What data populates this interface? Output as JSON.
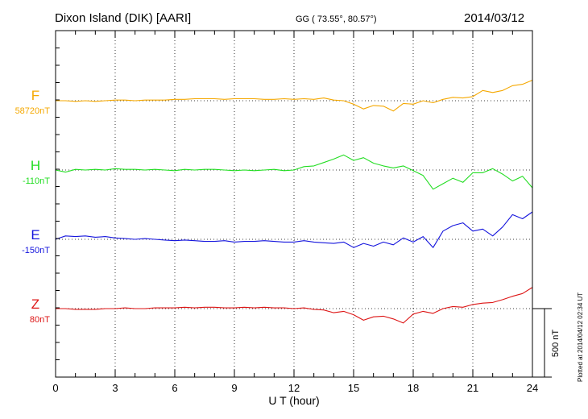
{
  "header": {
    "station": "Dixon Island (DIK)  [AARI]",
    "coords": "GG ( 73.55°,  80.57°)",
    "date": "2014/03/12"
  },
  "footer": {
    "plotted": "Plotted at 2014/04/12 02:34 UT"
  },
  "chart_data": {
    "type": "line",
    "xlabel": "U T (hour)",
    "xlim": [
      0,
      24
    ],
    "xticks": [
      0,
      3,
      6,
      9,
      12,
      15,
      18,
      21,
      24
    ],
    "scale_bar": "500 nT",
    "grid": true,
    "series": [
      {
        "name": "F",
        "baseline": "58720nT",
        "color": "#f5a800",
        "x": [
          0,
          0.5,
          1,
          1.5,
          2,
          2.5,
          3,
          3.5,
          4,
          4.5,
          5,
          5.5,
          6,
          6.5,
          7,
          7.5,
          8,
          8.5,
          9,
          9.5,
          10,
          10.5,
          11,
          11.5,
          12,
          12.5,
          13,
          13.5,
          14,
          14.5,
          15,
          15.5,
          16,
          16.5,
          17,
          17.5,
          18,
          18.5,
          19,
          19.5,
          20,
          20.5,
          21,
          21.5,
          22,
          22.5,
          23,
          23.5,
          24
        ],
        "y": [
          0,
          0,
          -5,
          0,
          -5,
          0,
          5,
          5,
          0,
          5,
          5,
          5,
          10,
          10,
          15,
          15,
          15,
          10,
          15,
          15,
          15,
          10,
          10,
          15,
          10,
          15,
          10,
          20,
          5,
          0,
          -25,
          -60,
          -35,
          -40,
          -75,
          -20,
          -25,
          0,
          -15,
          10,
          25,
          20,
          30,
          75,
          60,
          75,
          110,
          120,
          150
        ]
      },
      {
        "name": "H",
        "baseline": "-110nT",
        "color": "#22dd22",
        "x": [
          0,
          0.5,
          1,
          1.5,
          2,
          2.5,
          3,
          3.5,
          4,
          4.5,
          5,
          5.5,
          6,
          6.5,
          7,
          7.5,
          8,
          8.5,
          9,
          9.5,
          10,
          10.5,
          11,
          11.5,
          12,
          12.5,
          13,
          13.5,
          14,
          14.5,
          15,
          15.5,
          16,
          16.5,
          17,
          17.5,
          18,
          18.5,
          19,
          19.5,
          20,
          20.5,
          21,
          21.5,
          22,
          22.5,
          23,
          23.5,
          24
        ],
        "y": [
          0,
          -15,
          5,
          0,
          5,
          0,
          10,
          5,
          5,
          0,
          5,
          0,
          -5,
          5,
          0,
          5,
          5,
          0,
          -5,
          0,
          -5,
          0,
          5,
          -5,
          0,
          25,
          30,
          55,
          80,
          110,
          70,
          90,
          50,
          30,
          15,
          30,
          -5,
          -40,
          -140,
          -100,
          -60,
          -90,
          -20,
          -20,
          10,
          -30,
          -80,
          -45,
          -130
        ]
      },
      {
        "name": "E",
        "baseline": "-150nT",
        "color": "#1515dd",
        "x": [
          0,
          0.5,
          1,
          1.5,
          2,
          2.5,
          3,
          3.5,
          4,
          4.5,
          5,
          5.5,
          6,
          6.5,
          7,
          7.5,
          8,
          8.5,
          9,
          9.5,
          10,
          10.5,
          11,
          11.5,
          12,
          12.5,
          13,
          13.5,
          14,
          14.5,
          15,
          15.5,
          16,
          16.5,
          17,
          17.5,
          18,
          18.5,
          19,
          19.5,
          20,
          20.5,
          21,
          21.5,
          22,
          22.5,
          23,
          23.5,
          24
        ],
        "y": [
          0,
          25,
          20,
          25,
          15,
          20,
          10,
          5,
          0,
          5,
          0,
          -5,
          -10,
          -5,
          -10,
          -15,
          -15,
          -10,
          -20,
          -15,
          -15,
          -10,
          -15,
          -20,
          -20,
          -10,
          -20,
          -25,
          -30,
          -20,
          -60,
          -30,
          -50,
          -20,
          -40,
          10,
          -20,
          20,
          -60,
          60,
          100,
          120,
          60,
          75,
          25,
          90,
          180,
          150,
          200
        ]
      },
      {
        "name": "Z",
        "baseline": "80nT",
        "color": "#dd1515",
        "x": [
          0,
          0.5,
          1,
          1.5,
          2,
          2.5,
          3,
          3.5,
          4,
          4.5,
          5,
          5.5,
          6,
          6.5,
          7,
          7.5,
          8,
          8.5,
          9,
          9.5,
          10,
          10.5,
          11,
          11.5,
          12,
          12.5,
          13,
          13.5,
          14,
          14.5,
          15,
          15.5,
          16,
          16.5,
          17,
          17.5,
          18,
          18.5,
          19,
          19.5,
          20,
          20.5,
          21,
          21.5,
          22,
          22.5,
          23,
          23.5,
          24
        ],
        "y": [
          0,
          0,
          -5,
          -5,
          -5,
          0,
          0,
          5,
          0,
          0,
          5,
          5,
          5,
          10,
          5,
          10,
          10,
          5,
          5,
          10,
          5,
          10,
          5,
          5,
          0,
          5,
          -5,
          -10,
          -30,
          -20,
          -45,
          -85,
          -60,
          -55,
          -75,
          -105,
          -40,
          -20,
          -35,
          0,
          15,
          10,
          30,
          40,
          45,
          65,
          90,
          110,
          155
        ]
      }
    ]
  }
}
